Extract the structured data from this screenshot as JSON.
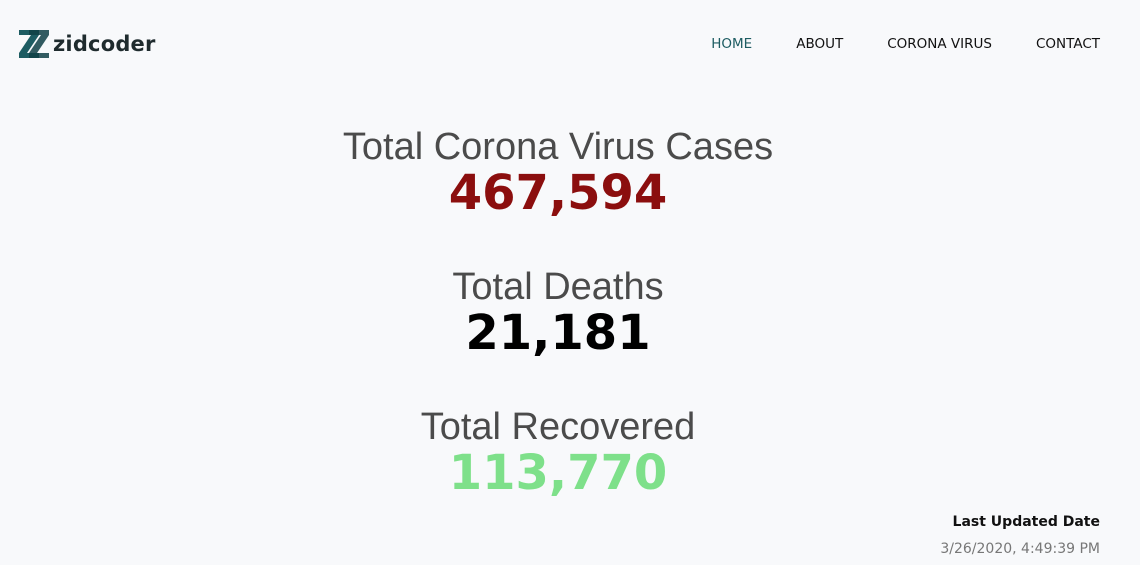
{
  "brand": {
    "name": "zidcoder",
    "color": "#1d5c62"
  },
  "nav": [
    {
      "label": "HOME",
      "active": true
    },
    {
      "label": "ABOUT",
      "active": false
    },
    {
      "label": "CORONA VIRUS",
      "active": false
    },
    {
      "label": "CONTACT",
      "active": false
    }
  ],
  "stats": {
    "cases": {
      "label": "Total Corona Virus Cases",
      "value": "467,594",
      "color": "#8b0e0e"
    },
    "deaths": {
      "label": "Total Deaths",
      "value": "21,181",
      "color": "#000000"
    },
    "recovered": {
      "label": "Total Recovered",
      "value": "113,770",
      "color": "#7ee08a"
    }
  },
  "last_updated": {
    "label": "Last Updated Date",
    "value": "3/26/2020, 4:49:39 PM"
  }
}
